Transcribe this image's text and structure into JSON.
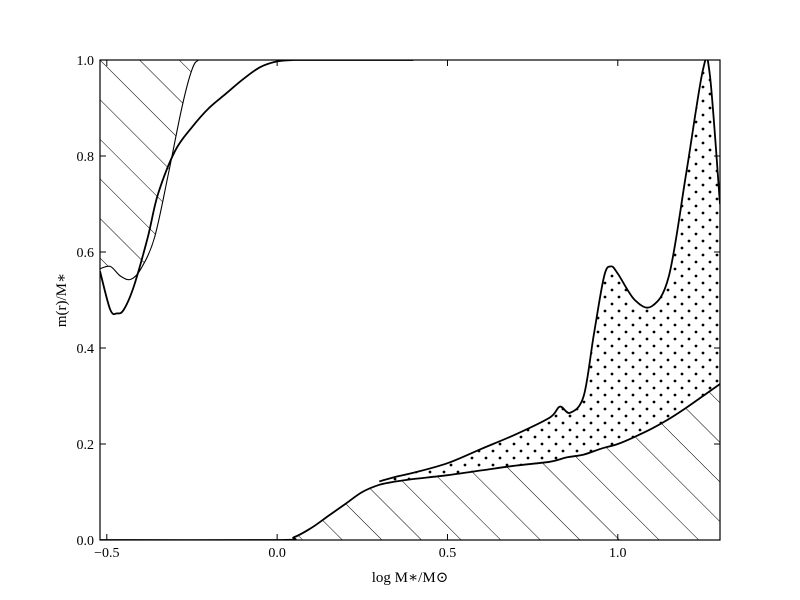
{
  "chart_data": {
    "type": "area",
    "title": "",
    "xlabel": "log M∗/M⊙",
    "ylabel": "m(r)/M∗",
    "xlim": [
      -0.52,
      1.3
    ],
    "ylim": [
      0.0,
      1.0
    ],
    "xticks": [
      -0.5,
      0.0,
      0.5,
      1.0
    ],
    "xtick_labels": [
      "−0.5",
      "0.0",
      "0.5",
      "1.0"
    ],
    "yticks": [
      0.0,
      0.2,
      0.4,
      0.6,
      0.8,
      1.0
    ],
    "ytick_labels": [
      "0.0",
      "0.2",
      "0.4",
      "0.6",
      "0.8",
      "1.0"
    ],
    "grid": false,
    "series": [
      {
        "role": "lower-hatched-region-top",
        "fill": "diagonal-hatch",
        "x": [
          -0.52,
          0.0,
          0.05,
          0.1,
          0.15,
          0.2,
          0.25,
          0.3,
          0.35,
          0.4,
          0.5,
          0.6,
          0.7,
          0.8,
          0.85,
          0.9,
          0.95,
          1.0,
          1.05,
          1.1,
          1.15,
          1.2,
          1.25,
          1.3
        ],
        "y": [
          0.0,
          0.0,
          0.006,
          0.025,
          0.05,
          0.075,
          0.1,
          0.115,
          0.122,
          0.127,
          0.135,
          0.145,
          0.155,
          0.163,
          0.172,
          0.178,
          0.19,
          0.2,
          0.215,
          0.232,
          0.252,
          0.275,
          0.3,
          0.325
        ]
      },
      {
        "role": "upper-dotted-region-top",
        "fill": "dots",
        "x": [
          0.3,
          0.35,
          0.4,
          0.5,
          0.6,
          0.7,
          0.8,
          0.83,
          0.86,
          0.9,
          0.93,
          0.96,
          0.98,
          1.0,
          1.05,
          1.1,
          1.15,
          1.2,
          1.25,
          1.27,
          1.3
        ],
        "y": [
          0.122,
          0.132,
          0.14,
          0.16,
          0.19,
          0.22,
          0.255,
          0.278,
          0.265,
          0.3,
          0.43,
          0.55,
          0.57,
          0.555,
          0.5,
          0.487,
          0.55,
          0.76,
          0.98,
          0.97,
          0.7
        ]
      },
      {
        "role": "outer-curve-bold",
        "x": [
          -0.52,
          -0.49,
          -0.47,
          -0.45,
          -0.42,
          -0.38,
          -0.35,
          -0.3,
          -0.25,
          -0.2,
          -0.15,
          -0.1,
          -0.05,
          0.0,
          0.05,
          0.1,
          0.2,
          0.3,
          0.4
        ],
        "y": [
          0.56,
          0.48,
          0.472,
          0.48,
          0.53,
          0.63,
          0.72,
          0.81,
          0.86,
          0.9,
          0.93,
          0.96,
          0.985,
          0.997,
          1.0,
          1.0,
          1.0,
          1.0,
          1.0
        ]
      },
      {
        "role": "inner-curve-thin",
        "x": [
          -0.52,
          -0.49,
          -0.46,
          -0.43,
          -0.4,
          -0.36,
          -0.32,
          -0.28,
          -0.25,
          -0.23,
          -0.2,
          -0.15,
          -0.1,
          -0.05
        ],
        "y": [
          0.565,
          0.57,
          0.55,
          0.543,
          0.565,
          0.63,
          0.76,
          0.9,
          0.98,
          1.0,
          1.0,
          1.0,
          1.0,
          1.0
        ]
      },
      {
        "role": "upper-left-hatched-region",
        "fill": "diagonal-hatch",
        "x": [
          -0.52,
          -0.49,
          -0.46,
          -0.43,
          -0.4,
          -0.36,
          -0.32,
          -0.28,
          -0.25,
          -0.23,
          -0.2,
          -0.15,
          -0.1,
          -0.05
        ],
        "y": [
          0.565,
          0.57,
          0.55,
          0.543,
          0.565,
          0.63,
          0.76,
          0.9,
          0.98,
          1.0,
          1.0,
          1.0,
          1.0,
          1.0
        ]
      }
    ]
  }
}
